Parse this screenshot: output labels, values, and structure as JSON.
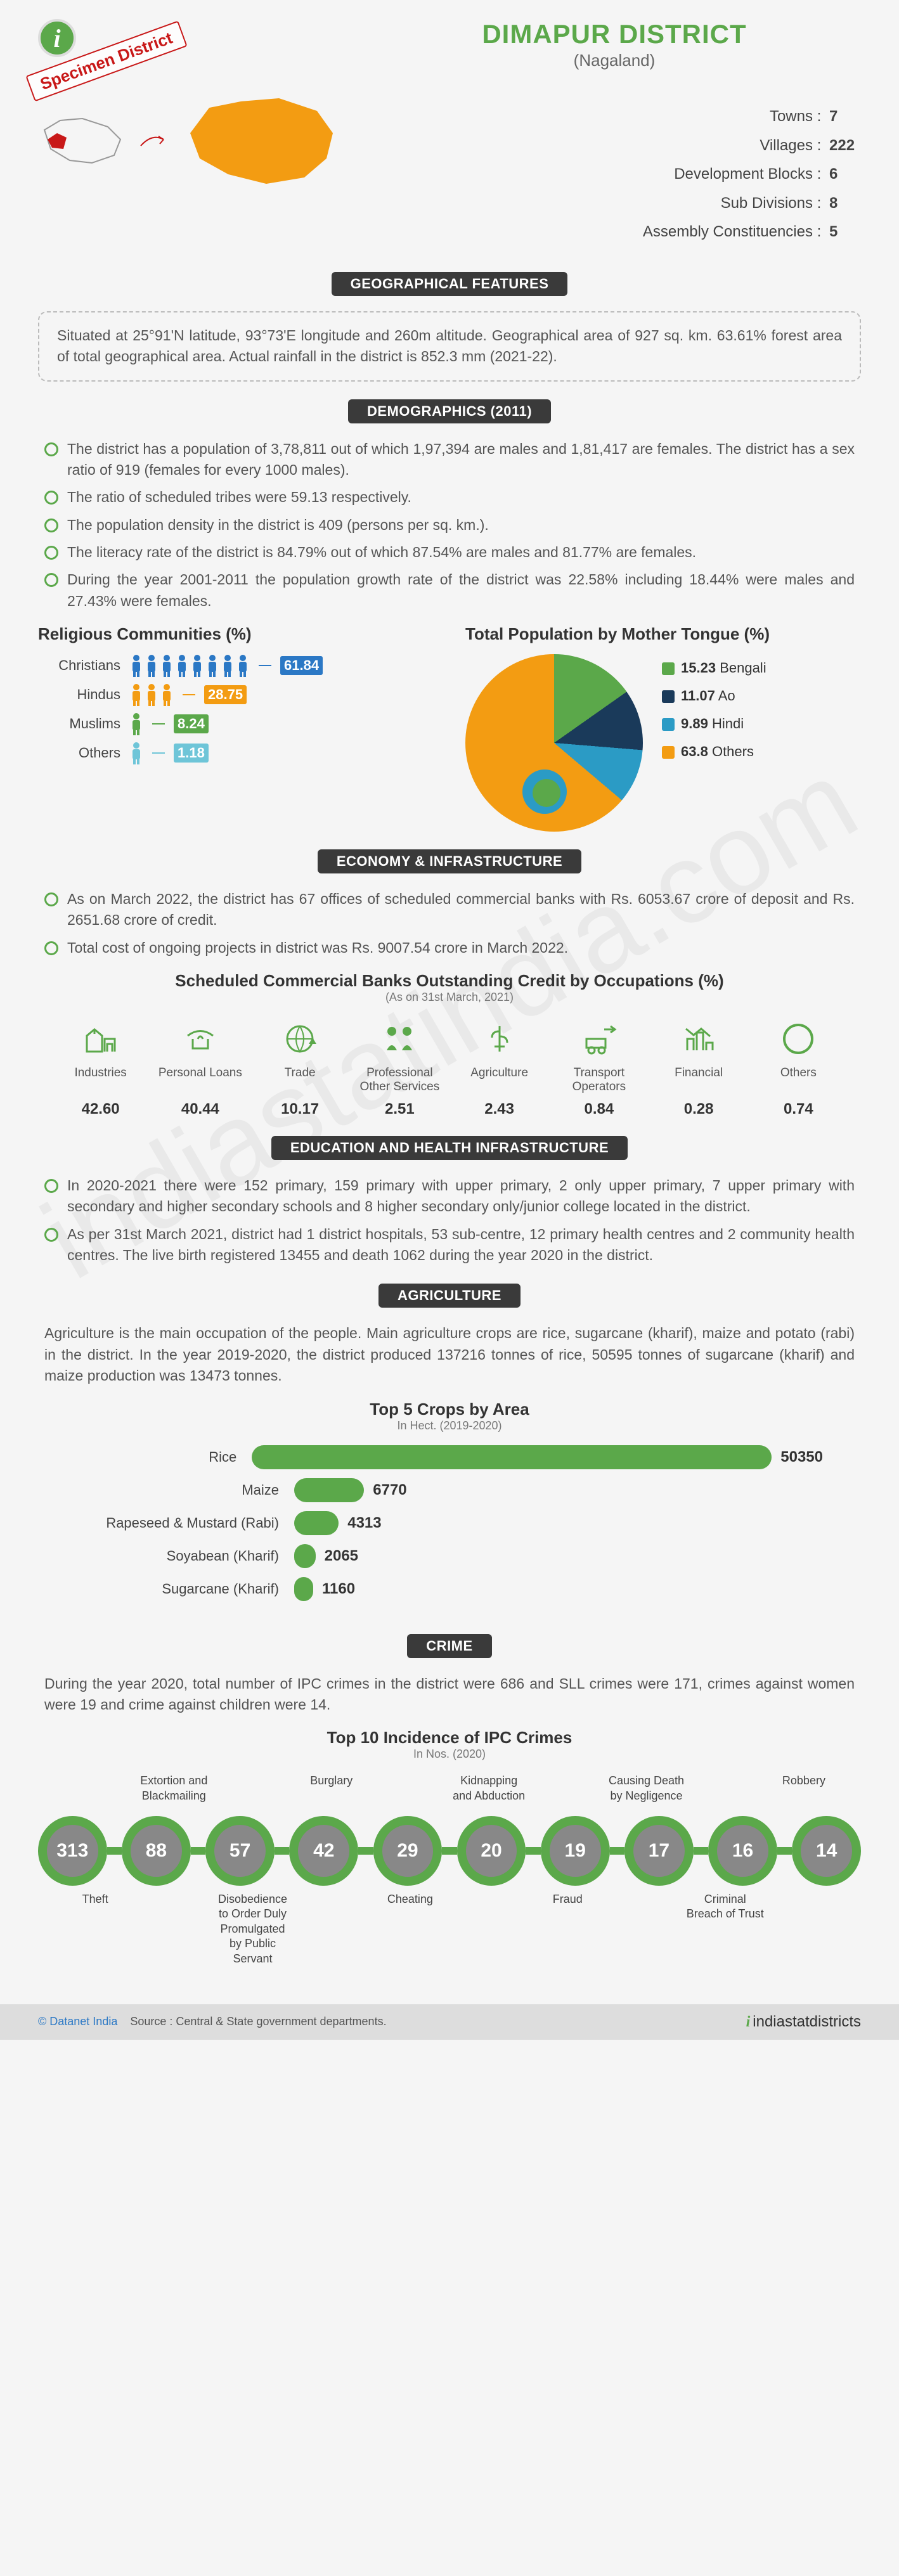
{
  "header": {
    "title": "DIMAPUR DISTRICT",
    "subtitle": "(Nagaland)",
    "specimen": "Specimen District",
    "stats": [
      {
        "label": "Towns",
        "value": "7"
      },
      {
        "label": "Villages",
        "value": "222"
      },
      {
        "label": "Development Blocks",
        "value": "6"
      },
      {
        "label": "Sub Divisions",
        "value": "8"
      },
      {
        "label": "Assembly Constituencies",
        "value": "5"
      }
    ]
  },
  "geo": {
    "badge": "GEOGRAPHICAL FEATURES",
    "text": "Situated at 25°91'N latitude, 93°73'E longitude and 260m altitude. Geographical area of 927 sq. km. 63.61% forest area of total geographical area. Actual rainfall in the district is 852.3 mm (2021-22)."
  },
  "demographics": {
    "badge": "DEMOGRAPHICS (2011)",
    "bullets": [
      "The district has a population of 3,78,811 out of which 1,97,394 are males and 1,81,417 are females. The district has a sex ratio of 919 (females for every 1000 males).",
      "The ratio of scheduled tribes were 59.13 respectively.",
      "The population density in the district is 409 (persons per sq. km.).",
      "The literacy rate of the district is 84.79% out of which 87.54% are males and 81.77% are females.",
      "During the year 2001-2011 the population growth rate of the district was 22.58% including 18.44% were males and 27.43% were females."
    ],
    "religious_title": "Religious Communities (%)",
    "religious": [
      {
        "label": "Christians",
        "value": 61.84,
        "color": "#2b78c5",
        "icons": 8
      },
      {
        "label": "Hindus",
        "value": 28.75,
        "color": "#f39c12",
        "icons": 3
      },
      {
        "label": "Muslims",
        "value": 8.24,
        "color": "#5ba84a",
        "icons": 1
      },
      {
        "label": "Others",
        "value": 1.18,
        "color": "#6ec5d8",
        "icons": 1
      }
    ],
    "mother_tongue_title": "Total Population by Mother Tongue (%)",
    "mother_tongue": [
      {
        "label": "Bengali",
        "value": 15.23,
        "color": "#5ba84a"
      },
      {
        "label": "Ao",
        "value": 11.07,
        "color": "#1a3a5a"
      },
      {
        "label": "Hindi",
        "value": 9.89,
        "color": "#2b9bc5"
      },
      {
        "label": "Others",
        "value": 63.8,
        "color": "#f39c12"
      }
    ]
  },
  "economy": {
    "badge": "ECONOMY & INFRASTRUCTURE",
    "bullets": [
      "As on March 2022, the district has 67 offices of scheduled commercial banks with Rs. 6053.67 crore of deposit and Rs. 2651.68 crore of credit.",
      "Total cost of ongoing projects in district was Rs. 9007.54 crore in March 2022."
    ],
    "credit_title": "Scheduled Commercial Banks Outstanding Credit by Occupations (%)",
    "credit_note": "(As on 31st March, 2021)",
    "credit": [
      {
        "label": "Industries",
        "value": "42.60"
      },
      {
        "label": "Personal Loans",
        "value": "40.44"
      },
      {
        "label": "Trade",
        "value": "10.17"
      },
      {
        "label": "Professional Other Services",
        "value": "2.51"
      },
      {
        "label": "Agriculture",
        "value": "2.43"
      },
      {
        "label": "Transport Operators",
        "value": "0.84"
      },
      {
        "label": "Financial",
        "value": "0.28"
      },
      {
        "label": "Others",
        "value": "0.74"
      }
    ]
  },
  "edu_health": {
    "badge": "EDUCATION AND HEALTH INFRASTRUCTURE",
    "bullets": [
      "In 2020-2021 there were 152 primary, 159 primary with upper primary, 2 only upper primary, 7 upper primary with secondary and higher secondary schools and 8 higher secondary only/junior college located in the district.",
      "As per 31st March 2021, district had 1 district hospitals, 53 sub-centre, 12 primary health centres and 2 community health centres. The live birth registered 13455 and death 1062 during the year 2020 in the district."
    ]
  },
  "agriculture": {
    "badge": "AGRICULTURE",
    "para": "Agriculture is the main occupation of the people. Main agriculture crops are rice, sugarcane (kharif), maize and potato (rabi) in the district. In the year 2019-2020, the district produced 137216 tonnes of rice, 50595 tonnes of sugarcane (kharif) and maize production was 13473 tonnes.",
    "crops_title": "Top 5 Crops by Area",
    "crops_note": "In Hect. (2019-2020)",
    "crops_max": 50350,
    "crops": [
      {
        "label": "Rice",
        "value": 50350
      },
      {
        "label": "Maize",
        "value": 6770
      },
      {
        "label": "Rapeseed & Mustard (Rabi)",
        "value": 4313
      },
      {
        "label": "Soyabean (Kharif)",
        "value": 2065
      },
      {
        "label": "Sugarcane (Kharif)",
        "value": 1160
      }
    ]
  },
  "crime": {
    "badge": "CRIME",
    "para": "During the year 2020, total number of IPC crimes in the district were 686 and SLL crimes were 171, crimes against women were 19 and crime against children were 14.",
    "title": "Top 10 Incidence of IPC Crimes",
    "note": "In Nos. (2020)",
    "items": [
      {
        "value": 313,
        "top": "",
        "bottom": "Theft"
      },
      {
        "value": 88,
        "top": "Extortion and Blackmailing",
        "bottom": ""
      },
      {
        "value": 57,
        "top": "",
        "bottom": "Disobedience to Order Duly Promulgated by Public Servant"
      },
      {
        "value": 42,
        "top": "Burglary",
        "bottom": ""
      },
      {
        "value": 29,
        "top": "",
        "bottom": "Cheating"
      },
      {
        "value": 20,
        "top": "Kidnapping and Abduction",
        "bottom": ""
      },
      {
        "value": 19,
        "top": "",
        "bottom": "Fraud"
      },
      {
        "value": 17,
        "top": "Causing Death by Negligence",
        "bottom": ""
      },
      {
        "value": 16,
        "top": "",
        "bottom": "Criminal Breach of Trust"
      },
      {
        "value": 14,
        "top": "Robbery",
        "bottom": ""
      }
    ]
  },
  "footer": {
    "copyright": "© Datanet India",
    "source": "Source : Central & State government departments.",
    "logo": "indiastatdistricts"
  }
}
